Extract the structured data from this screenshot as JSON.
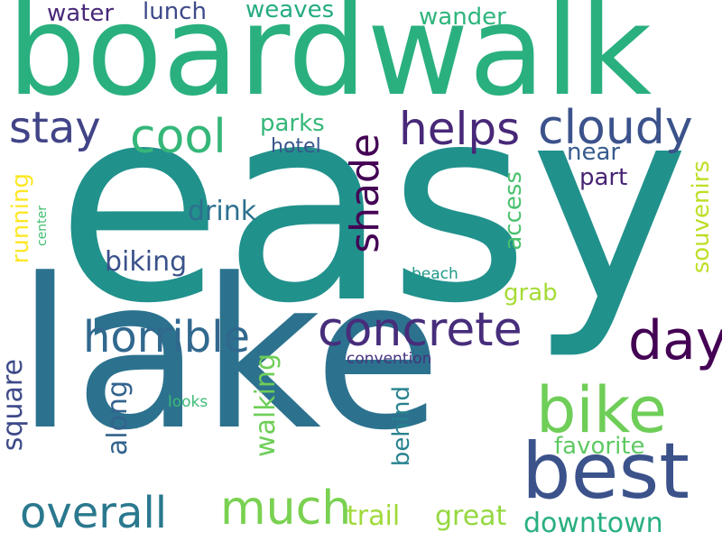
{
  "words": {
    "easy": {
      "text": "easy",
      "color": "#21918c"
    },
    "lake": {
      "text": "lake",
      "color": "#2c728e"
    },
    "boardwalk": {
      "text": "boardwalk",
      "color": "#2ab07f"
    },
    "best": {
      "text": "best",
      "color": "#3b528b"
    },
    "bike": {
      "text": "bike",
      "color": "#6ece58"
    },
    "concrete": {
      "text": "concrete",
      "color": "#472d7b"
    },
    "day": {
      "text": "day",
      "color": "#440154"
    },
    "horrible": {
      "text": "horrible",
      "color": "#31688e"
    },
    "much": {
      "text": "much",
      "color": "#7ad151"
    },
    "overall": {
      "text": "overall",
      "color": "#2a788e"
    },
    "helps": {
      "text": "helps",
      "color": "#482878"
    },
    "cloudy": {
      "text": "cloudy",
      "color": "#3b528b"
    },
    "stay": {
      "text": "stay",
      "color": "#414487"
    },
    "cool": {
      "text": "cool",
      "color": "#35b779"
    },
    "shade": {
      "text": "shade",
      "color": "#440154"
    },
    "trail": {
      "text": "trail",
      "color": "#a0da39"
    },
    "great": {
      "text": "great",
      "color": "#95d840"
    },
    "downtown": {
      "text": "downtown",
      "color": "#29af7f"
    },
    "square": {
      "text": "square",
      "color": "#3e4a89"
    },
    "along": {
      "text": "along",
      "color": "#33638d"
    },
    "walking": {
      "text": "walking",
      "color": "#6ece58"
    },
    "behind": {
      "text": "behind",
      "color": "#26828e"
    },
    "favorite": {
      "text": "favorite",
      "color": "#5ec962"
    },
    "souvenirs": {
      "text": "souvenirs",
      "color": "#bddf26"
    },
    "access": {
      "text": "access",
      "color": "#4ac16d"
    },
    "grab": {
      "text": "grab",
      "color": "#a5db36"
    },
    "biking": {
      "text": "biking",
      "color": "#3b528b"
    },
    "drink": {
      "text": "drink",
      "color": "#2d708e"
    },
    "running": {
      "text": "running",
      "color": "#fde725"
    },
    "center": {
      "text": "center",
      "color": "#42be71"
    },
    "water": {
      "text": "water",
      "color": "#482878"
    },
    "lunch": {
      "text": "lunch",
      "color": "#3e4a89"
    },
    "weaves": {
      "text": "weaves",
      "color": "#25ab82"
    },
    "wander": {
      "text": "wander",
      "color": "#2fb47c"
    },
    "parks": {
      "text": "parks",
      "color": "#35b779"
    },
    "hotel": {
      "text": "hotel",
      "color": "#39568c"
    },
    "near": {
      "text": "near",
      "color": "#365c8d"
    },
    "part": {
      "text": "part",
      "color": "#482475"
    },
    "beach": {
      "text": "beach",
      "color": "#1f9a8a"
    },
    "convention": {
      "text": "convention",
      "color": "#46337f"
    },
    "looks": {
      "text": "looks",
      "color": "#3cbb75"
    }
  }
}
